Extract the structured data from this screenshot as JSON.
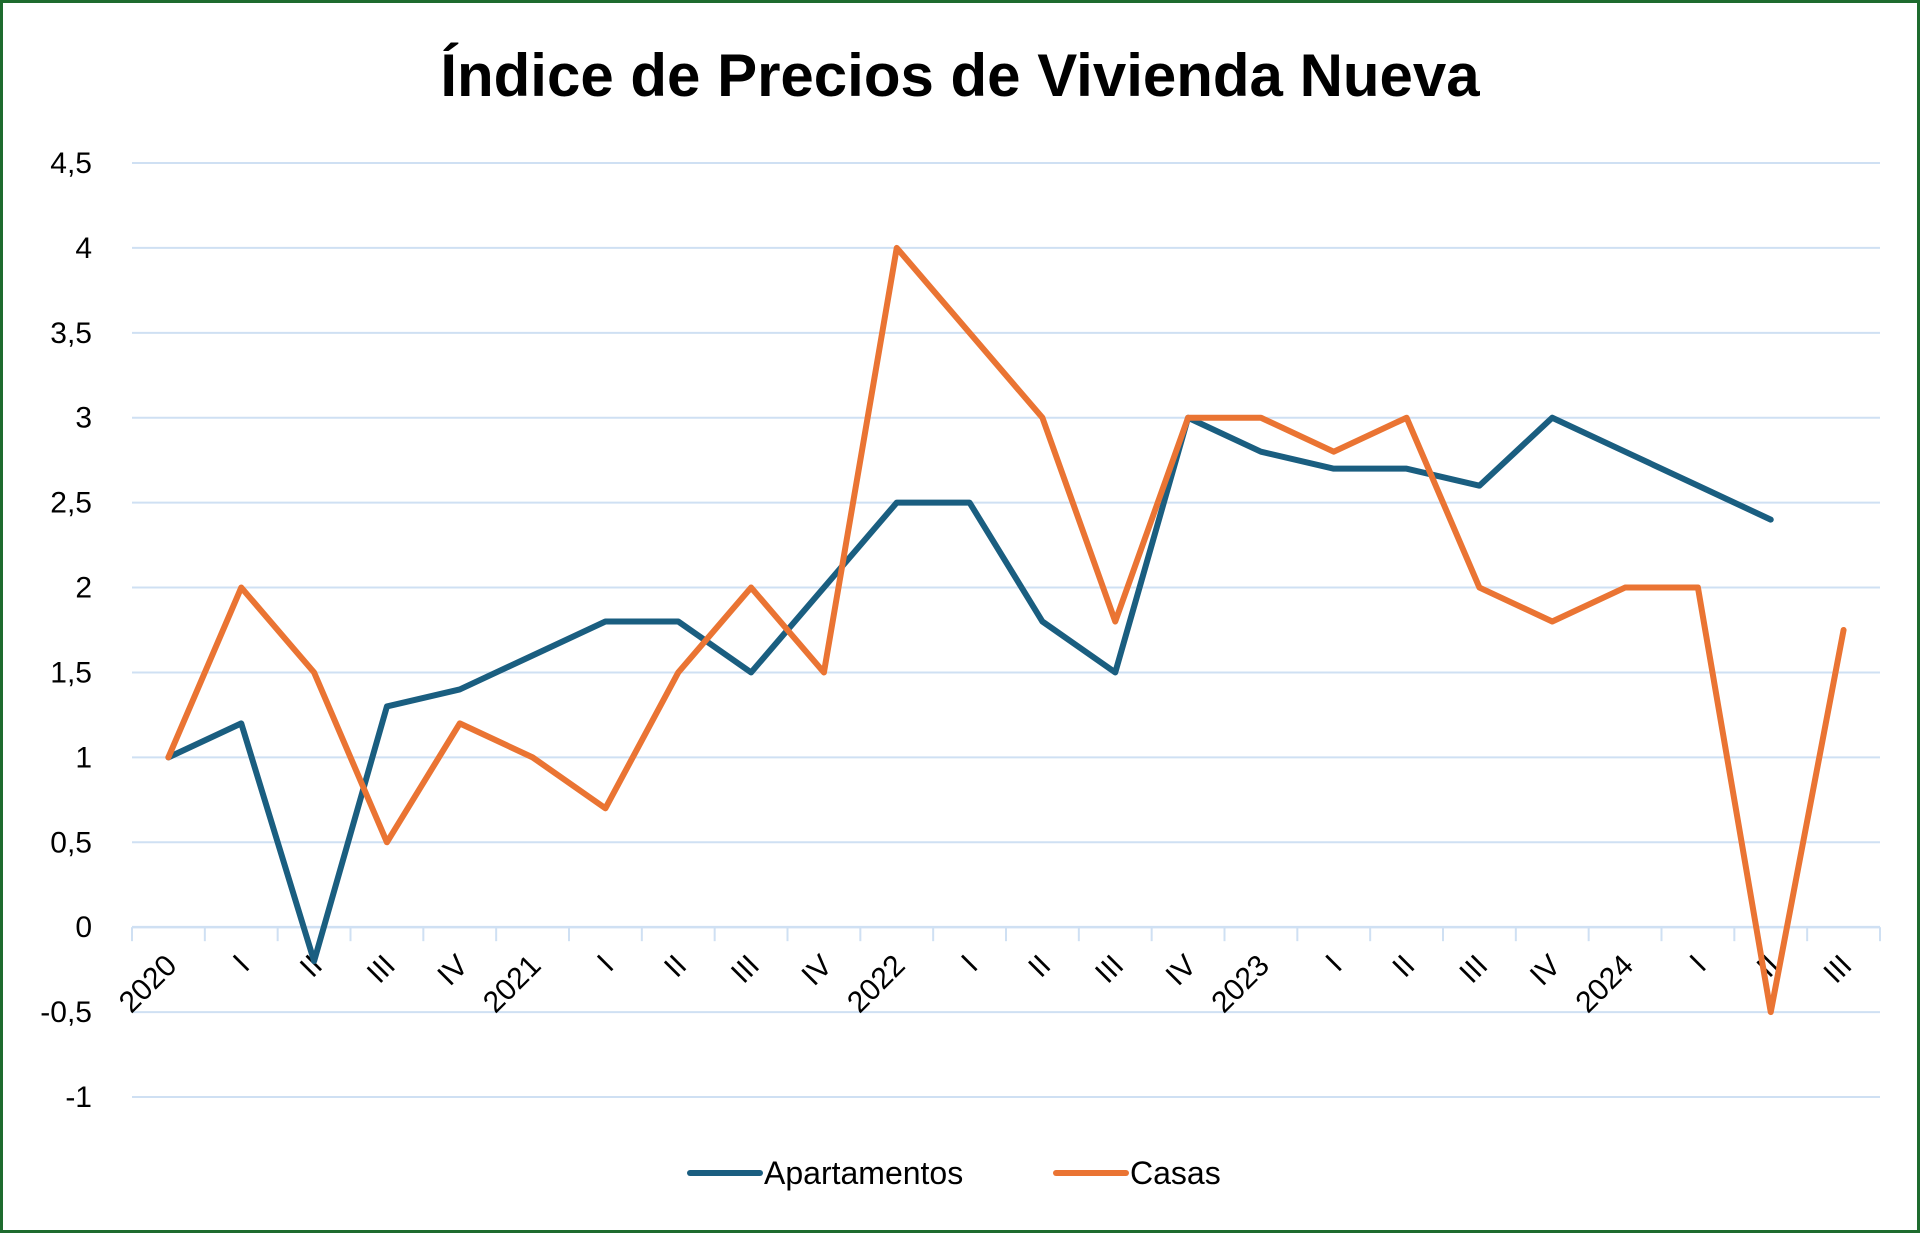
{
  "chart_data": {
    "type": "line",
    "title": "Índice de Precios de Vivienda Nueva",
    "xlabel": "",
    "ylabel": "",
    "categories": [
      "2020",
      "I",
      "II",
      "III",
      "IV",
      "2021",
      "I",
      "II",
      "III",
      "IV",
      "2022",
      "I",
      "II",
      "III",
      "IV",
      "2023",
      "I",
      "II",
      "III",
      "IV",
      "2024",
      "I",
      "II",
      "III"
    ],
    "ylim": [
      -1,
      4.5
    ],
    "yticks": [
      "-1",
      "-0,5",
      "0",
      "0,5",
      "1",
      "1,5",
      "2",
      "2,5",
      "3",
      "3,5",
      "4",
      "4,5"
    ],
    "grid": true,
    "legend": "bottom",
    "series": [
      {
        "name": "Apartamentos",
        "color": "#1a5e80",
        "values": [
          1,
          1.2,
          -0.2,
          1.3,
          1.4,
          1.6,
          1.8,
          1.8,
          1.5,
          2.0,
          2.5,
          2.5,
          1.8,
          1.5,
          3.0,
          2.8,
          2.7,
          2.7,
          2.6,
          3.0,
          2.8,
          2.6,
          2.4,
          null
        ]
      },
      {
        "name": "Casas",
        "color": "#ea7433",
        "values": [
          1,
          2,
          1.5,
          0.5,
          1.2,
          1.0,
          0.7,
          1.5,
          2.0,
          1.5,
          4.0,
          3.5,
          3.0,
          1.8,
          3.0,
          3.0,
          2.8,
          3.0,
          2.0,
          1.8,
          2.0,
          2.0,
          -0.5,
          1.75
        ]
      }
    ]
  }
}
